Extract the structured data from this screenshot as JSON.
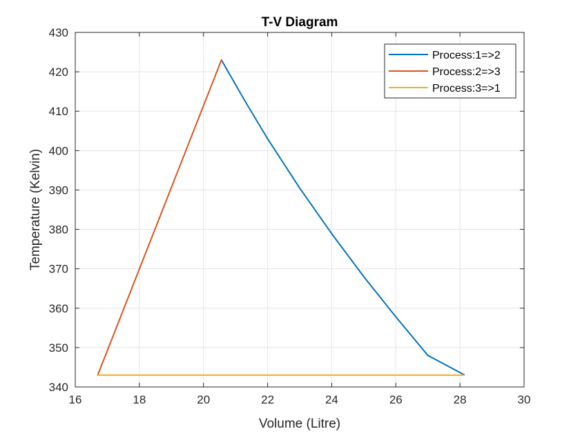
{
  "chart_data": {
    "type": "line",
    "title": "T-V Diagram",
    "xlabel": "Volume (Litre)",
    "ylabel": "Temperature (Kelvin)",
    "xlim": [
      16,
      30
    ],
    "ylim": [
      340,
      430
    ],
    "xticks": [
      16,
      18,
      20,
      22,
      24,
      26,
      28,
      30
    ],
    "yticks": [
      340,
      350,
      360,
      370,
      380,
      390,
      400,
      410,
      420,
      430
    ],
    "grid": true,
    "legend_position": "top-right",
    "series": [
      {
        "name": "Process:1=>2",
        "color": "#0072BD",
        "points": [
          [
            20.56,
            423.0
          ],
          [
            21.3,
            412.5
          ],
          [
            22.0,
            403.0
          ],
          [
            23.0,
            390.5
          ],
          [
            24.0,
            378.9
          ],
          [
            25.0,
            368.0
          ],
          [
            26.0,
            357.8
          ],
          [
            27.0,
            348.0
          ],
          [
            28.13,
            343.1
          ]
        ]
      },
      {
        "name": "Process:2=>3",
        "color": "#D95319",
        "points": [
          [
            16.7,
            343.0
          ],
          [
            20.56,
            423.0
          ]
        ]
      },
      {
        "name": "Process:3=>1",
        "color": "#EDB120",
        "points": [
          [
            16.7,
            343.0
          ],
          [
            28.13,
            343.0
          ]
        ]
      }
    ]
  }
}
